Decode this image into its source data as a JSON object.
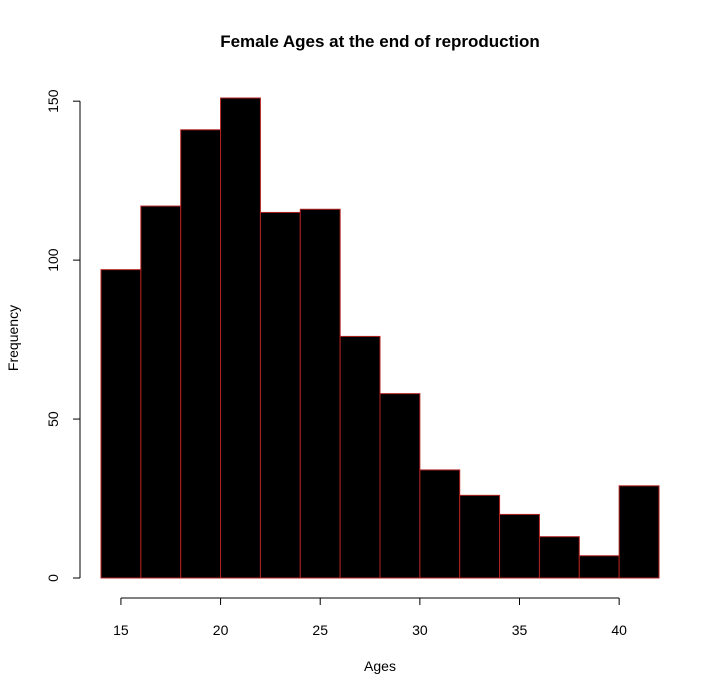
{
  "chart_data": {
    "type": "bar",
    "title": "Female Ages at the end of reproduction",
    "xlabel": "Ages",
    "ylabel": "Frequency",
    "bins": [
      {
        "x0": 14,
        "x1": 16,
        "count": 97
      },
      {
        "x0": 16,
        "x1": 18,
        "count": 117
      },
      {
        "x0": 18,
        "x1": 20,
        "count": 141
      },
      {
        "x0": 20,
        "x1": 22,
        "count": 151
      },
      {
        "x0": 22,
        "x1": 24,
        "count": 115
      },
      {
        "x0": 24,
        "x1": 26,
        "count": 116
      },
      {
        "x0": 26,
        "x1": 28,
        "count": 76
      },
      {
        "x0": 28,
        "x1": 30,
        "count": 58
      },
      {
        "x0": 30,
        "x1": 32,
        "count": 34
      },
      {
        "x0": 32,
        "x1": 34,
        "count": 26
      },
      {
        "x0": 34,
        "x1": 36,
        "count": 20
      },
      {
        "x0": 36,
        "x1": 38,
        "count": 13
      },
      {
        "x0": 38,
        "x1": 40,
        "count": 7
      },
      {
        "x0": 40,
        "x1": 42,
        "count": 29
      }
    ],
    "xticks": [
      15,
      20,
      25,
      30,
      35,
      40
    ],
    "yticks": [
      0,
      50,
      100,
      150
    ],
    "xlim": [
      14,
      42
    ],
    "ylim": [
      0,
      151
    ],
    "grid": false,
    "bar_color": "#000000",
    "bar_border_color": "#b22222"
  }
}
